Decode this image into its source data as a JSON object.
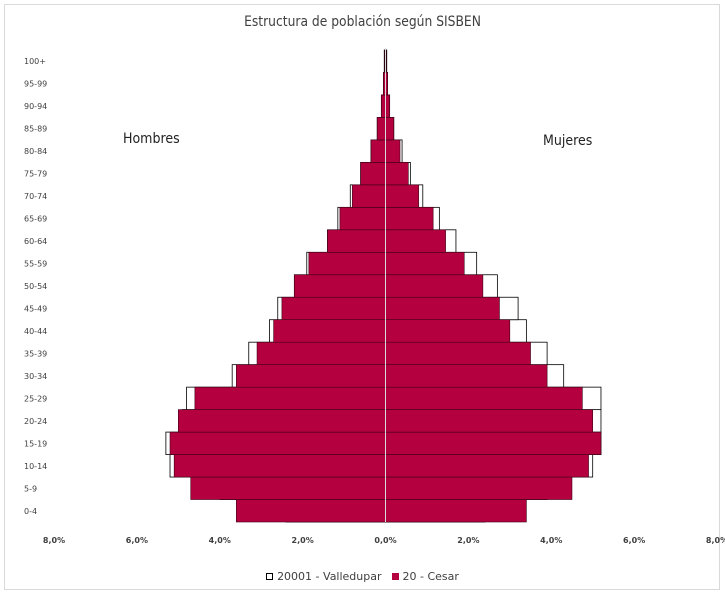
{
  "chart_data": {
    "type": "bar",
    "orientation": "horizontal",
    "subtype": "population-pyramid",
    "title": "Estructura de población según SISBEN",
    "left_label": "Hombres",
    "right_label": "Mujeres",
    "categories": [
      "0-4",
      "5-9",
      "10-14",
      "15-19",
      "20-24",
      "25-29",
      "30-34",
      "35-39",
      "40-44",
      "45-49",
      "50-54",
      "55-59",
      "60-64",
      "65-69",
      "70-74",
      "75-79",
      "80-84",
      "85-89",
      "90-94",
      "95-99",
      "100+"
    ],
    "xlim": [
      -8,
      8
    ],
    "x_ticks": [
      -8,
      -6,
      -4,
      -2,
      0,
      2,
      4,
      6,
      8
    ],
    "x_tick_labels": [
      "8,0%",
      "6,0%",
      "4,0%",
      "2,0%",
      "0,0%",
      "2,0%",
      "4,0%",
      "6,0%",
      "8,0%"
    ],
    "grid": false,
    "legend_position": "bottom",
    "series": [
      {
        "name": "20001 - Valledupar",
        "style": "outline",
        "color": "#ffffff",
        "stroke": "#000000",
        "hombres": [
          2.4,
          4.0,
          5.2,
          5.3,
          4.9,
          4.8,
          3.7,
          3.3,
          2.8,
          2.6,
          2.2,
          1.9,
          1.4,
          1.15,
          0.85,
          0.6,
          0.35,
          0.2,
          0.1,
          0.05,
          0.03
        ],
        "mujeres": [
          2.4,
          3.9,
          5.0,
          5.2,
          5.2,
          5.2,
          4.3,
          3.9,
          3.4,
          3.2,
          2.7,
          2.2,
          1.7,
          1.3,
          0.9,
          0.6,
          0.4,
          0.2,
          0.1,
          0.05,
          0.03
        ]
      },
      {
        "name": "20 - Cesar",
        "style": "filled",
        "color": "#b5003f",
        "hombres": [
          3.6,
          4.7,
          5.1,
          5.2,
          5.0,
          4.6,
          3.6,
          3.1,
          2.7,
          2.5,
          2.2,
          1.85,
          1.4,
          1.1,
          0.8,
          0.6,
          0.35,
          0.2,
          0.1,
          0.05,
          0.02
        ],
        "mujeres": [
          3.4,
          4.5,
          4.9,
          5.2,
          5.0,
          4.75,
          3.9,
          3.5,
          3.0,
          2.75,
          2.35,
          1.9,
          1.45,
          1.15,
          0.8,
          0.55,
          0.35,
          0.2,
          0.1,
          0.05,
          0.02
        ]
      }
    ]
  }
}
